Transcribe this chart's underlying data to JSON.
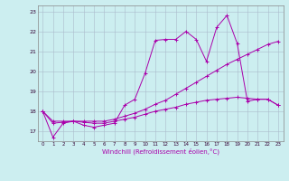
{
  "xlabel": "Windchill (Refroidissement éolien,°C)",
  "bg_color": "#cceef0",
  "line_color": "#aa00aa",
  "grid_color": "#aabbcc",
  "xlim": [
    -0.5,
    23.5
  ],
  "ylim": [
    16.5,
    23.3
  ],
  "yticks": [
    17,
    18,
    19,
    20,
    21,
    22,
    23
  ],
  "xticks": [
    0,
    1,
    2,
    3,
    4,
    5,
    6,
    7,
    8,
    9,
    10,
    11,
    12,
    13,
    14,
    15,
    16,
    17,
    18,
    19,
    20,
    21,
    22,
    23
  ],
  "line1_x": [
    0,
    1,
    2,
    3,
    4,
    5,
    6,
    7,
    8,
    9,
    10,
    11,
    12,
    13,
    14,
    15,
    16,
    17,
    18,
    19,
    20,
    21,
    22,
    23
  ],
  "line1_y": [
    18.0,
    16.7,
    17.4,
    17.5,
    17.3,
    17.2,
    17.3,
    17.4,
    18.3,
    18.6,
    19.9,
    21.55,
    21.6,
    21.6,
    22.0,
    21.6,
    20.5,
    22.2,
    22.8,
    21.4,
    18.5,
    18.6,
    18.6,
    18.3
  ],
  "line2_x": [
    0,
    1,
    2,
    3,
    4,
    5,
    6,
    7,
    8,
    9,
    10,
    11,
    12,
    13,
    14,
    15,
    16,
    17,
    18,
    19,
    20,
    21,
    22,
    23
  ],
  "line2_y": [
    18.0,
    17.4,
    17.45,
    17.5,
    17.45,
    17.4,
    17.4,
    17.5,
    17.6,
    17.7,
    17.85,
    18.0,
    18.1,
    18.2,
    18.35,
    18.45,
    18.55,
    18.6,
    18.65,
    18.7,
    18.65,
    18.6,
    18.6,
    18.3
  ],
  "line3_x": [
    0,
    1,
    2,
    3,
    4,
    5,
    6,
    7,
    8,
    9,
    10,
    11,
    12,
    13,
    14,
    15,
    16,
    17,
    18,
    19,
    20,
    21,
    22,
    23
  ],
  "line3_y": [
    18.0,
    17.5,
    17.5,
    17.5,
    17.5,
    17.5,
    17.5,
    17.6,
    17.75,
    17.9,
    18.1,
    18.35,
    18.55,
    18.85,
    19.15,
    19.45,
    19.75,
    20.05,
    20.35,
    20.6,
    20.85,
    21.1,
    21.35,
    21.5
  ]
}
